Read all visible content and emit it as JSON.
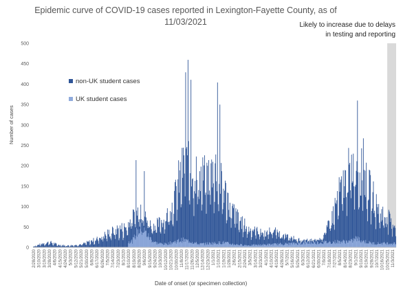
{
  "title_lines": [
    "Epidemic curve of COVID-19 cases reported in Lexington-Fayette County, as of",
    "11/03/2021"
  ],
  "shade_note": "Likely to increase due to delays in testing and reporting",
  "colors": {
    "non_uk": "#2F5597",
    "uk": "#8FAADC",
    "shade": "#D9D9D9",
    "axis": "#BFBFBF",
    "text": "#555555"
  },
  "chart_data": {
    "type": "bar",
    "stacked": true,
    "title": "Epidemic curve of COVID-19 cases reported in Lexington-Fayette County, as of 11/03/2021",
    "xlabel": "Date of onset (or specimen collection)",
    "ylabel": "Number of cases",
    "ylim": [
      0,
      500
    ],
    "yticks": [
      0,
      50,
      100,
      150,
      200,
      250,
      300,
      350,
      400,
      450,
      500
    ],
    "legend": [
      {
        "name": "non-UK student cases",
        "color": "#2F5597"
      },
      {
        "name": "UK student cases",
        "color": "#8FAADC"
      }
    ],
    "legend_position": "upper-left",
    "x_start": "2020-02-28",
    "x_end": "2021-11-03",
    "xtick_labels": [
      "2/28/2020",
      "3/10/2020",
      "3/19/2020",
      "3/28/2020",
      "4/6/2020",
      "4/15/2020",
      "4/24/2020",
      "5/3/2020",
      "5/12/2020",
      "5/21/2020",
      "5/30/2020",
      "6/8/2020",
      "6/17/2020",
      "6/26/2020",
      "7/5/2020",
      "7/14/2020",
      "7/23/2020",
      "8/1/2020",
      "8/10/2020",
      "8/19/2020",
      "8/28/2020",
      "9/6/2020",
      "9/15/2020",
      "9/24/2020",
      "10/3/2020",
      "10/12/2020",
      "10/21/2020",
      "10/30/2020",
      "11/8/2020",
      "11/17/2020",
      "11/26/2020",
      "12/5/2020",
      "12/14/2020",
      "12/23/2020",
      "1/1/2021",
      "1/10/2021",
      "1/19/2021",
      "1/28/2021",
      "2/6/2021",
      "2/15/2021",
      "2/24/2021",
      "3/5/2021",
      "3/14/2021",
      "3/23/2021",
      "4/1/2021",
      "4/10/2021",
      "4/19/2021",
      "4/28/2021",
      "5/7/2021",
      "5/16/2021",
      "5/25/2021",
      "6/3/2021",
      "6/12/2021",
      "6/21/2021",
      "6/30/2021",
      "7/9/2021",
      "7/18/2021",
      "7/27/2021",
      "8/5/2021",
      "8/14/2021",
      "8/23/2021",
      "9/1/2021",
      "9/10/2021",
      "9/19/2021",
      "9/28/2021",
      "10/7/2021",
      "10/16/2021",
      "10/25/2021",
      "11/3/2021"
    ],
    "shaded_range": [
      "2021-10-20",
      "2021-11-03"
    ],
    "series": [
      {
        "name": "non-UK student cases",
        "weekly_avg": [
          {
            "week_of": "2020-02-28",
            "value": 2
          },
          {
            "week_of": "2020-03-13",
            "value": 8
          },
          {
            "week_of": "2020-03-27",
            "value": 12
          },
          {
            "week_of": "2020-04-10",
            "value": 6
          },
          {
            "week_of": "2020-04-24",
            "value": 4
          },
          {
            "week_of": "2020-05-08",
            "value": 5
          },
          {
            "week_of": "2020-05-22",
            "value": 8
          },
          {
            "week_of": "2020-06-05",
            "value": 14
          },
          {
            "week_of": "2020-06-19",
            "value": 22
          },
          {
            "week_of": "2020-07-03",
            "value": 32
          },
          {
            "week_of": "2020-07-17",
            "value": 40
          },
          {
            "week_of": "2020-07-31",
            "value": 45
          },
          {
            "week_of": "2020-08-14",
            "value": 52
          },
          {
            "week_of": "2020-08-28",
            "value": 40
          },
          {
            "week_of": "2020-09-11",
            "value": 30
          },
          {
            "week_of": "2020-09-25",
            "value": 42
          },
          {
            "week_of": "2020-10-09",
            "value": 60
          },
          {
            "week_of": "2020-10-23",
            "value": 95
          },
          {
            "week_of": "2020-11-06",
            "value": 165
          },
          {
            "week_of": "2020-11-20",
            "value": 175
          },
          {
            "week_of": "2020-12-04",
            "value": 150
          },
          {
            "week_of": "2020-12-18",
            "value": 155
          },
          {
            "week_of": "2021-01-01",
            "value": 175
          },
          {
            "week_of": "2021-01-15",
            "value": 125
          },
          {
            "week_of": "2021-01-29",
            "value": 80
          },
          {
            "week_of": "2021-02-12",
            "value": 55
          },
          {
            "week_of": "2021-02-26",
            "value": 38
          },
          {
            "week_of": "2021-03-12",
            "value": 33
          },
          {
            "week_of": "2021-03-26",
            "value": 26
          },
          {
            "week_of": "2021-04-09",
            "value": 32
          },
          {
            "week_of": "2021-04-23",
            "value": 22
          },
          {
            "week_of": "2021-05-07",
            "value": 14
          },
          {
            "week_of": "2021-05-21",
            "value": 8
          },
          {
            "week_of": "2021-06-04",
            "value": 6
          },
          {
            "week_of": "2021-06-18",
            "value": 6
          },
          {
            "week_of": "2021-07-02",
            "value": 12
          },
          {
            "week_of": "2021-07-16",
            "value": 50
          },
          {
            "week_of": "2021-07-30",
            "value": 110
          },
          {
            "week_of": "2021-08-13",
            "value": 155
          },
          {
            "week_of": "2021-08-27",
            "value": 175
          },
          {
            "week_of": "2021-09-10",
            "value": 150
          },
          {
            "week_of": "2021-09-24",
            "value": 110
          },
          {
            "week_of": "2021-10-08",
            "value": 70
          },
          {
            "week_of": "2021-10-22",
            "value": 58
          },
          {
            "week_of": "2021-11-03",
            "value": 38
          }
        ],
        "peaks": [
          {
            "date": "2020-08-20",
            "value": 185
          },
          {
            "date": "2020-09-03",
            "value": 138
          },
          {
            "date": "2020-11-12",
            "value": 415
          },
          {
            "date": "2020-11-16",
            "value": 440
          },
          {
            "date": "2020-11-21",
            "value": 400
          },
          {
            "date": "2021-01-05",
            "value": 395
          },
          {
            "date": "2021-01-09",
            "value": 335
          },
          {
            "date": "2021-08-30",
            "value": 338
          },
          {
            "date": "2021-09-09",
            "value": 250
          }
        ]
      },
      {
        "name": "UK student cases",
        "weekly_avg": [
          {
            "week_of": "2020-08-14",
            "value": 15
          },
          {
            "week_of": "2020-08-21",
            "value": 35
          },
          {
            "week_of": "2020-08-28",
            "value": 45
          },
          {
            "week_of": "2020-09-04",
            "value": 38
          },
          {
            "week_of": "2020-09-11",
            "value": 25
          },
          {
            "week_of": "2020-09-18",
            "value": 15
          },
          {
            "week_of": "2020-09-25",
            "value": 10
          },
          {
            "week_of": "2020-10-09",
            "value": 8
          },
          {
            "week_of": "2020-11-06",
            "value": 18
          },
          {
            "week_of": "2020-11-20",
            "value": 15
          },
          {
            "week_of": "2020-12-04",
            "value": 8
          },
          {
            "week_of": "2021-01-15",
            "value": 12
          },
          {
            "week_of": "2021-01-29",
            "value": 8
          },
          {
            "week_of": "2021-02-26",
            "value": 5
          },
          {
            "week_of": "2021-08-20",
            "value": 15
          },
          {
            "week_of": "2021-08-27",
            "value": 22
          },
          {
            "week_of": "2021-09-10",
            "value": 15
          },
          {
            "week_of": "2021-09-24",
            "value": 10
          }
        ]
      }
    ]
  }
}
